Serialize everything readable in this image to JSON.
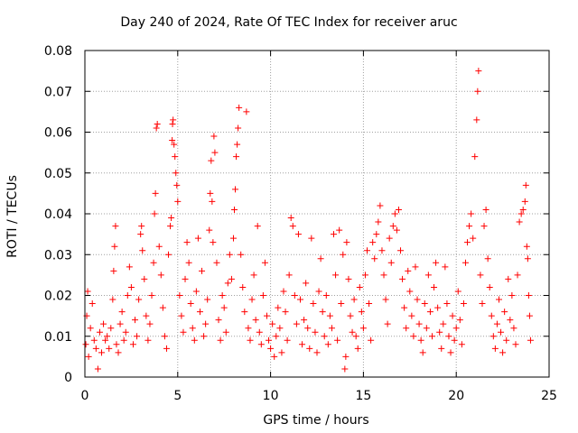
{
  "chart_data": {
    "type": "scatter",
    "title": "Day 240 of 2024, Rate Of TEC Index for receiver aruc",
    "xlabel": "GPS time / hours",
    "ylabel": "ROTI / TECUs",
    "xlim": [
      0,
      25
    ],
    "ylim": [
      0,
      0.08
    ],
    "x_ticks": [
      "0",
      "5",
      "10",
      "15",
      "20",
      "25"
    ],
    "y_ticks": [
      "0",
      "0.01",
      "0.02",
      "0.03",
      "0.04",
      "0.05",
      "0.06",
      "0.07",
      "0.08"
    ],
    "grid": true,
    "marker": "+",
    "color": "#ff0000",
    "series": [
      {
        "points": [
          [
            0.05,
            0.008
          ],
          [
            0.1,
            0.015
          ],
          [
            0.15,
            0.021
          ],
          [
            0.2,
            0.005
          ],
          [
            0.3,
            0.012
          ],
          [
            0.4,
            0.018
          ],
          [
            0.5,
            0.009
          ],
          [
            0.6,
            0.007
          ],
          [
            0.7,
            0.002
          ],
          [
            0.8,
            0.011
          ],
          [
            0.9,
            0.006
          ],
          [
            1.0,
            0.013
          ],
          [
            1.1,
            0.009
          ],
          [
            1.2,
            0.01
          ],
          [
            1.3,
            0.007
          ],
          [
            1.4,
            0.012
          ],
          [
            1.5,
            0.019
          ],
          [
            1.55,
            0.026
          ],
          [
            1.6,
            0.032
          ],
          [
            1.65,
            0.037
          ],
          [
            1.7,
            0.008
          ],
          [
            1.8,
            0.006
          ],
          [
            1.9,
            0.013
          ],
          [
            2.0,
            0.016
          ],
          [
            2.1,
            0.009
          ],
          [
            2.2,
            0.011
          ],
          [
            2.3,
            0.02
          ],
          [
            2.4,
            0.027
          ],
          [
            2.5,
            0.022
          ],
          [
            2.6,
            0.008
          ],
          [
            2.7,
            0.014
          ],
          [
            2.8,
            0.01
          ],
          [
            2.9,
            0.019
          ],
          [
            3.0,
            0.035
          ],
          [
            3.05,
            0.037
          ],
          [
            3.1,
            0.031
          ],
          [
            3.2,
            0.024
          ],
          [
            3.3,
            0.015
          ],
          [
            3.4,
            0.009
          ],
          [
            3.5,
            0.013
          ],
          [
            3.6,
            0.02
          ],
          [
            3.7,
            0.028
          ],
          [
            3.75,
            0.04
          ],
          [
            3.8,
            0.045
          ],
          [
            3.85,
            0.061
          ],
          [
            3.9,
            0.062
          ],
          [
            4.0,
            0.032
          ],
          [
            4.1,
            0.025
          ],
          [
            4.2,
            0.017
          ],
          [
            4.3,
            0.01
          ],
          [
            4.4,
            0.007
          ],
          [
            4.5,
            0.03
          ],
          [
            4.6,
            0.037
          ],
          [
            4.65,
            0.039
          ],
          [
            4.7,
            0.058
          ],
          [
            4.72,
            0.062
          ],
          [
            4.75,
            0.063
          ],
          [
            4.8,
            0.057
          ],
          [
            4.85,
            0.054
          ],
          [
            4.9,
            0.05
          ],
          [
            4.95,
            0.047
          ],
          [
            5.0,
            0.043
          ],
          [
            5.1,
            0.02
          ],
          [
            5.2,
            0.015
          ],
          [
            5.3,
            0.011
          ],
          [
            5.4,
            0.024
          ],
          [
            5.5,
            0.033
          ],
          [
            5.6,
            0.028
          ],
          [
            5.7,
            0.018
          ],
          [
            5.8,
            0.012
          ],
          [
            5.9,
            0.009
          ],
          [
            6.0,
            0.021
          ],
          [
            6.1,
            0.034
          ],
          [
            6.2,
            0.016
          ],
          [
            6.3,
            0.026
          ],
          [
            6.4,
            0.01
          ],
          [
            6.5,
            0.013
          ],
          [
            6.6,
            0.019
          ],
          [
            6.7,
            0.036
          ],
          [
            6.75,
            0.045
          ],
          [
            6.8,
            0.053
          ],
          [
            6.85,
            0.043
          ],
          [
            6.9,
            0.033
          ],
          [
            6.95,
            0.059
          ],
          [
            7.0,
            0.055
          ],
          [
            7.1,
            0.028
          ],
          [
            7.2,
            0.014
          ],
          [
            7.3,
            0.009
          ],
          [
            7.4,
            0.02
          ],
          [
            7.5,
            0.017
          ],
          [
            7.6,
            0.011
          ],
          [
            7.7,
            0.023
          ],
          [
            7.8,
            0.03
          ],
          [
            7.9,
            0.024
          ],
          [
            8.0,
            0.034
          ],
          [
            8.05,
            0.041
          ],
          [
            8.1,
            0.046
          ],
          [
            8.15,
            0.054
          ],
          [
            8.2,
            0.057
          ],
          [
            8.25,
            0.061
          ],
          [
            8.3,
            0.066
          ],
          [
            8.4,
            0.03
          ],
          [
            8.5,
            0.022
          ],
          [
            8.6,
            0.016
          ],
          [
            8.7,
            0.065
          ],
          [
            8.8,
            0.012
          ],
          [
            8.9,
            0.009
          ],
          [
            9.0,
            0.019
          ],
          [
            9.1,
            0.025
          ],
          [
            9.2,
            0.014
          ],
          [
            9.3,
            0.037
          ],
          [
            9.4,
            0.011
          ],
          [
            9.5,
            0.008
          ],
          [
            9.6,
            0.02
          ],
          [
            9.7,
            0.028
          ],
          [
            9.8,
            0.015
          ],
          [
            9.9,
            0.009
          ],
          [
            10.0,
            0.007
          ],
          [
            10.1,
            0.013
          ],
          [
            10.2,
            0.005
          ],
          [
            10.3,
            0.01
          ],
          [
            10.4,
            0.017
          ],
          [
            10.5,
            0.012
          ],
          [
            10.6,
            0.006
          ],
          [
            10.7,
            0.021
          ],
          [
            10.8,
            0.016
          ],
          [
            10.9,
            0.009
          ],
          [
            11.0,
            0.025
          ],
          [
            11.1,
            0.039
          ],
          [
            11.2,
            0.037
          ],
          [
            11.3,
            0.02
          ],
          [
            11.4,
            0.013
          ],
          [
            11.5,
            0.035
          ],
          [
            11.6,
            0.019
          ],
          [
            11.7,
            0.008
          ],
          [
            11.8,
            0.014
          ],
          [
            11.9,
            0.023
          ],
          [
            12.0,
            0.012
          ],
          [
            12.1,
            0.007
          ],
          [
            12.2,
            0.034
          ],
          [
            12.3,
            0.018
          ],
          [
            12.4,
            0.011
          ],
          [
            12.5,
            0.006
          ],
          [
            12.6,
            0.021
          ],
          [
            12.7,
            0.029
          ],
          [
            12.8,
            0.016
          ],
          [
            12.9,
            0.01
          ],
          [
            13.0,
            0.02
          ],
          [
            13.1,
            0.008
          ],
          [
            13.2,
            0.015
          ],
          [
            13.3,
            0.012
          ],
          [
            13.4,
            0.035
          ],
          [
            13.5,
            0.025
          ],
          [
            13.6,
            0.009
          ],
          [
            13.7,
            0.036
          ],
          [
            13.8,
            0.018
          ],
          [
            13.9,
            0.03
          ],
          [
            14.0,
            0.002
          ],
          [
            14.05,
            0.005
          ],
          [
            14.1,
            0.033
          ],
          [
            14.2,
            0.024
          ],
          [
            14.3,
            0.015
          ],
          [
            14.4,
            0.011
          ],
          [
            14.5,
            0.019
          ],
          [
            14.6,
            0.01
          ],
          [
            14.7,
            0.007
          ],
          [
            14.8,
            0.022
          ],
          [
            14.9,
            0.016
          ],
          [
            15.0,
            0.012
          ],
          [
            15.1,
            0.025
          ],
          [
            15.2,
            0.031
          ],
          [
            15.3,
            0.018
          ],
          [
            15.4,
            0.009
          ],
          [
            15.5,
            0.033
          ],
          [
            15.6,
            0.029
          ],
          [
            15.7,
            0.035
          ],
          [
            15.8,
            0.038
          ],
          [
            15.9,
            0.042
          ],
          [
            16.0,
            0.031
          ],
          [
            16.1,
            0.025
          ],
          [
            16.2,
            0.019
          ],
          [
            16.3,
            0.013
          ],
          [
            16.4,
            0.034
          ],
          [
            16.5,
            0.028
          ],
          [
            16.6,
            0.037
          ],
          [
            16.7,
            0.04
          ],
          [
            16.8,
            0.036
          ],
          [
            16.9,
            0.041
          ],
          [
            17.0,
            0.031
          ],
          [
            17.1,
            0.024
          ],
          [
            17.2,
            0.017
          ],
          [
            17.3,
            0.012
          ],
          [
            17.4,
            0.026
          ],
          [
            17.5,
            0.021
          ],
          [
            17.6,
            0.015
          ],
          [
            17.7,
            0.01
          ],
          [
            17.8,
            0.027
          ],
          [
            17.9,
            0.019
          ],
          [
            18.0,
            0.013
          ],
          [
            18.1,
            0.009
          ],
          [
            18.2,
            0.006
          ],
          [
            18.3,
            0.018
          ],
          [
            18.4,
            0.012
          ],
          [
            18.5,
            0.025
          ],
          [
            18.6,
            0.016
          ],
          [
            18.7,
            0.01
          ],
          [
            18.8,
            0.022
          ],
          [
            18.9,
            0.028
          ],
          [
            19.0,
            0.017
          ],
          [
            19.1,
            0.011
          ],
          [
            19.2,
            0.007
          ],
          [
            19.3,
            0.013
          ],
          [
            19.4,
            0.027
          ],
          [
            19.5,
            0.018
          ],
          [
            19.6,
            0.01
          ],
          [
            19.7,
            0.006
          ],
          [
            19.8,
            0.015
          ],
          [
            19.9,
            0.009
          ],
          [
            20.0,
            0.012
          ],
          [
            20.1,
            0.021
          ],
          [
            20.2,
            0.014
          ],
          [
            20.3,
            0.008
          ],
          [
            20.4,
            0.018
          ],
          [
            20.5,
            0.028
          ],
          [
            20.6,
            0.033
          ],
          [
            20.7,
            0.037
          ],
          [
            20.8,
            0.04
          ],
          [
            20.9,
            0.034
          ],
          [
            21.0,
            0.054
          ],
          [
            21.1,
            0.063
          ],
          [
            21.15,
            0.07
          ],
          [
            21.2,
            0.075
          ],
          [
            21.3,
            0.025
          ],
          [
            21.4,
            0.018
          ],
          [
            21.5,
            0.037
          ],
          [
            21.6,
            0.041
          ],
          [
            21.7,
            0.029
          ],
          [
            21.8,
            0.022
          ],
          [
            21.9,
            0.015
          ],
          [
            22.0,
            0.01
          ],
          [
            22.1,
            0.007
          ],
          [
            22.2,
            0.013
          ],
          [
            22.3,
            0.019
          ],
          [
            22.4,
            0.011
          ],
          [
            22.5,
            0.006
          ],
          [
            22.6,
            0.016
          ],
          [
            22.7,
            0.009
          ],
          [
            22.8,
            0.024
          ],
          [
            22.9,
            0.014
          ],
          [
            23.0,
            0.02
          ],
          [
            23.1,
            0.012
          ],
          [
            23.2,
            0.008
          ],
          [
            23.3,
            0.025
          ],
          [
            23.4,
            0.038
          ],
          [
            23.5,
            0.04
          ],
          [
            23.6,
            0.041
          ],
          [
            23.7,
            0.043
          ],
          [
            23.75,
            0.047
          ],
          [
            23.8,
            0.032
          ],
          [
            23.85,
            0.029
          ],
          [
            23.9,
            0.02
          ],
          [
            23.95,
            0.015
          ],
          [
            24.0,
            0.009
          ]
        ]
      }
    ]
  }
}
